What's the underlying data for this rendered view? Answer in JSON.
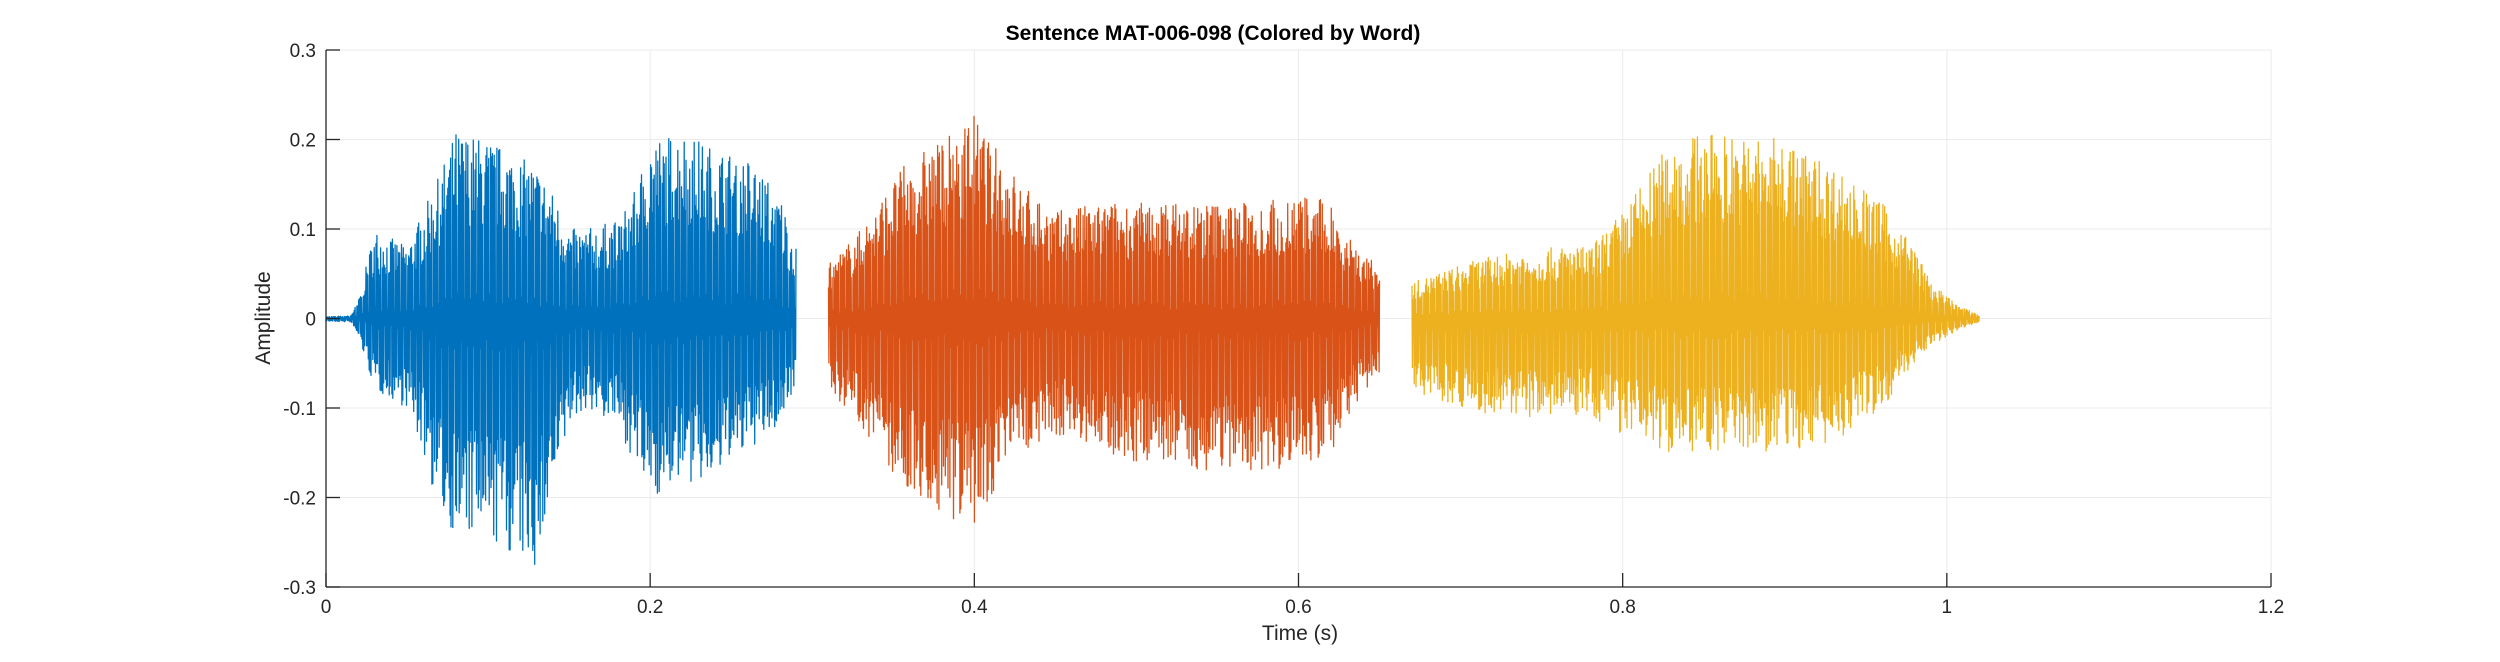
{
  "chart_data": {
    "type": "line",
    "title": "Sentence MAT-006-098 (Colored by Word)",
    "xlabel": "Time (s)",
    "ylabel": "Amplitude",
    "xlim": [
      0,
      1.2
    ],
    "ylim": [
      -0.3,
      0.3
    ],
    "xticks": [
      0,
      0.2,
      0.4,
      0.6,
      0.8,
      1,
      1.2
    ],
    "xtick_labels": [
      "0",
      "0.2",
      "0.4",
      "0.6",
      "0.8",
      "1",
      "1.2"
    ],
    "yticks": [
      0.3,
      0.2,
      0.1,
      0,
      -0.1,
      -0.2,
      -0.3
    ],
    "ytick_labels": [
      "0.3",
      "0.2",
      "0.1",
      "0",
      "-0.1",
      "-0.2",
      "-0.3"
    ],
    "grid": true,
    "axis_color": "#262626",
    "grid_color": "#ebebeb",
    "series": [
      {
        "color": "#0072BD",
        "x_range": [
          0,
          0.29
        ],
        "envelope": {
          "x": [
            0,
            0.015,
            0.02,
            0.03,
            0.05,
            0.06,
            0.07,
            0.08,
            0.1,
            0.12,
            0.13,
            0.14,
            0.15,
            0.16,
            0.18,
            0.19,
            0.2,
            0.22,
            0.24,
            0.26,
            0.28,
            0.29
          ],
          "max": [
            0.002,
            0.003,
            0.02,
            0.1,
            0.08,
            0.12,
            0.16,
            0.21,
            0.2,
            0.18,
            0.17,
            0.14,
            0.1,
            0.1,
            0.11,
            0.14,
            0.2,
            0.21,
            0.19,
            0.18,
            0.14,
            0.08
          ],
          "min": [
            -0.003,
            -0.004,
            -0.02,
            -0.08,
            -0.1,
            -0.15,
            -0.22,
            -0.24,
            -0.25,
            -0.27,
            -0.28,
            -0.2,
            -0.12,
            -0.1,
            -0.12,
            -0.16,
            -0.2,
            -0.19,
            -0.18,
            -0.15,
            -0.12,
            -0.07
          ]
        }
      },
      {
        "color": "#D95319",
        "x_range": [
          0.31,
          0.65
        ],
        "envelope": {
          "x": [
            0.31,
            0.33,
            0.36,
            0.38,
            0.4,
            0.41,
            0.43,
            0.45,
            0.48,
            0.5,
            0.53,
            0.57,
            0.6,
            0.62,
            0.64,
            0.65
          ],
          "max": [
            0.06,
            0.1,
            0.18,
            0.2,
            0.23,
            0.2,
            0.15,
            0.12,
            0.13,
            0.13,
            0.13,
            0.13,
            0.14,
            0.13,
            0.07,
            0.06
          ],
          "min": [
            -0.08,
            -0.12,
            -0.2,
            -0.22,
            -0.23,
            -0.2,
            -0.15,
            -0.13,
            -0.15,
            -0.16,
            -0.17,
            -0.17,
            -0.17,
            -0.15,
            -0.08,
            -0.07
          ]
        }
      },
      {
        "color": "#EDB120",
        "x_range": [
          0.67,
          1.02
        ],
        "envelope": {
          "x": [
            0.67,
            0.7,
            0.72,
            0.76,
            0.78,
            0.8,
            0.83,
            0.86,
            0.9,
            0.93,
            0.96,
            0.98,
            0.99,
            1.0,
            1.01,
            1.02
          ],
          "max": [
            0.04,
            0.06,
            0.07,
            0.08,
            0.08,
            0.12,
            0.2,
            0.21,
            0.2,
            0.17,
            0.13,
            0.08,
            0.04,
            0.025,
            0.012,
            0.004
          ],
          "min": [
            -0.08,
            -0.1,
            -0.11,
            -0.11,
            -0.11,
            -0.13,
            -0.15,
            -0.15,
            -0.15,
            -0.14,
            -0.1,
            -0.05,
            -0.03,
            -0.02,
            -0.01,
            -0.004
          ]
        }
      }
    ]
  }
}
